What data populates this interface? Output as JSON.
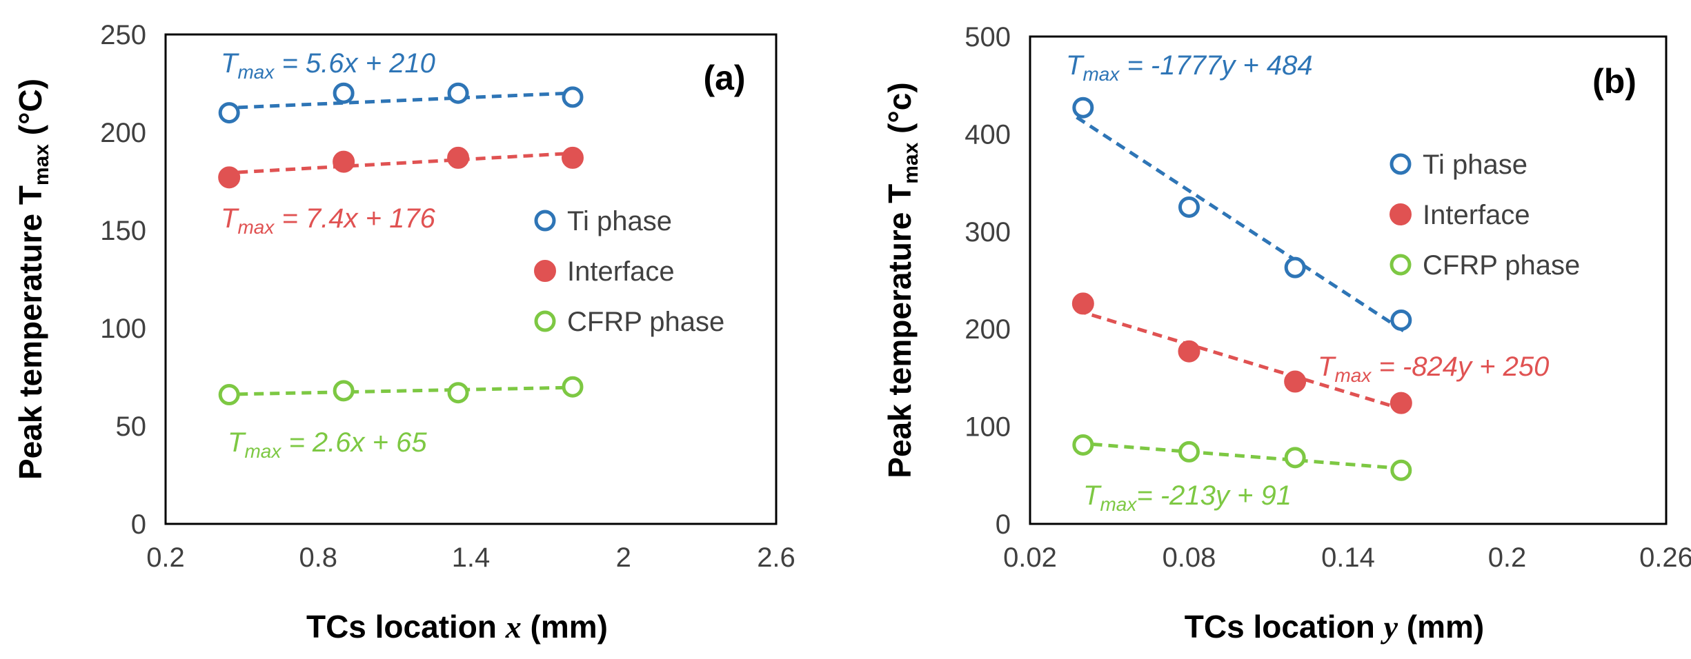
{
  "chart_data": [
    {
      "type": "scatter",
      "panel_label": "(a)",
      "xlabel_prefix": "TCs location ",
      "xlabel_var": "x",
      "xlabel_suffix": " (mm)",
      "ylabel_main": "Peak temperature T",
      "ylabel_sub": "max",
      "ylabel_unit": " (°C)",
      "xlim": [
        0.2,
        2.6
      ],
      "ylim": [
        0,
        250
      ],
      "xticks": [
        0.2,
        0.8,
        1.4,
        2,
        2.6
      ],
      "xtick_labels": [
        "0.2",
        "0.8",
        "1.4",
        "2",
        "2.6"
      ],
      "yticks": [
        0,
        50,
        100,
        150,
        200,
        250
      ],
      "ytick_labels": [
        "0",
        "50",
        "100",
        "150",
        "200",
        "250"
      ],
      "legend_position": "right-middle",
      "series": [
        {
          "name": "Ti phase",
          "marker": "open-circle",
          "color": "#2e75b6",
          "x": [
            0.45,
            0.9,
            1.35,
            1.8
          ],
          "y": [
            210,
            220,
            220,
            218
          ],
          "fit": {
            "slope": 5.6,
            "intercept": 210
          },
          "equation": {
            "lhs": "T",
            "sub": "max",
            "rhs": " = 5.6x + 210"
          }
        },
        {
          "name": "Interface",
          "marker": "filled-circle",
          "color": "#e05252",
          "x": [
            0.45,
            0.9,
            1.35,
            1.8
          ],
          "y": [
            177,
            185,
            187,
            187
          ],
          "fit": {
            "slope": 7.4,
            "intercept": 176
          },
          "equation": {
            "lhs": "T",
            "sub": "max",
            "rhs": " = 7.4x + 176"
          }
        },
        {
          "name": "CFRP phase",
          "marker": "open-circle",
          "color": "#7dc843",
          "x": [
            0.45,
            0.9,
            1.35,
            1.8
          ],
          "y": [
            66,
            68,
            67,
            70
          ],
          "fit": {
            "slope": 2.6,
            "intercept": 65
          },
          "equation": {
            "lhs": "T",
            "sub": "max",
            "rhs": " = 2.6x + 65"
          }
        }
      ]
    },
    {
      "type": "scatter",
      "panel_label": "(b)",
      "xlabel_prefix": "TCs location ",
      "xlabel_var": "y",
      "xlabel_suffix": " (mm)",
      "ylabel_main": "Peak temperature T",
      "ylabel_sub": "max",
      "ylabel_unit": " (°c)",
      "xlim": [
        0.02,
        0.26
      ],
      "ylim": [
        0,
        500
      ],
      "xticks": [
        0.02,
        0.08,
        0.14,
        0.2,
        0.26
      ],
      "xtick_labels": [
        "0.02",
        "0.08",
        "0.14",
        "0.2",
        "0.26"
      ],
      "yticks": [
        0,
        100,
        200,
        300,
        400,
        500
      ],
      "ytick_labels": [
        "0",
        "100",
        "200",
        "300",
        "400",
        "500"
      ],
      "legend_position": "top-right",
      "series": [
        {
          "name": "Ti phase",
          "marker": "open-circle",
          "color": "#2e75b6",
          "x": [
            0.04,
            0.08,
            0.12,
            0.16
          ],
          "y": [
            427,
            325,
            263,
            209
          ],
          "fit": {
            "slope": -1777,
            "intercept": 484
          },
          "equation": {
            "lhs": "T",
            "sub": "max",
            "rhs": " = -1777y + 484"
          }
        },
        {
          "name": "Interface",
          "marker": "filled-circle",
          "color": "#e05252",
          "x": [
            0.04,
            0.08,
            0.12,
            0.16
          ],
          "y": [
            226,
            177,
            146,
            124
          ],
          "fit": {
            "slope": -824,
            "intercept": 250
          },
          "equation": {
            "lhs": "T",
            "sub": "max",
            "rhs": " = -824y + 250"
          }
        },
        {
          "name": "CFRP phase",
          "marker": "open-circle",
          "color": "#7dc843",
          "x": [
            0.04,
            0.08,
            0.12,
            0.16
          ],
          "y": [
            81,
            74,
            68,
            55
          ],
          "fit": {
            "slope": -213,
            "intercept": 91
          },
          "equation": {
            "lhs": "T",
            "sub": "max",
            "rhs": "= -213y + 91"
          }
        }
      ]
    }
  ]
}
